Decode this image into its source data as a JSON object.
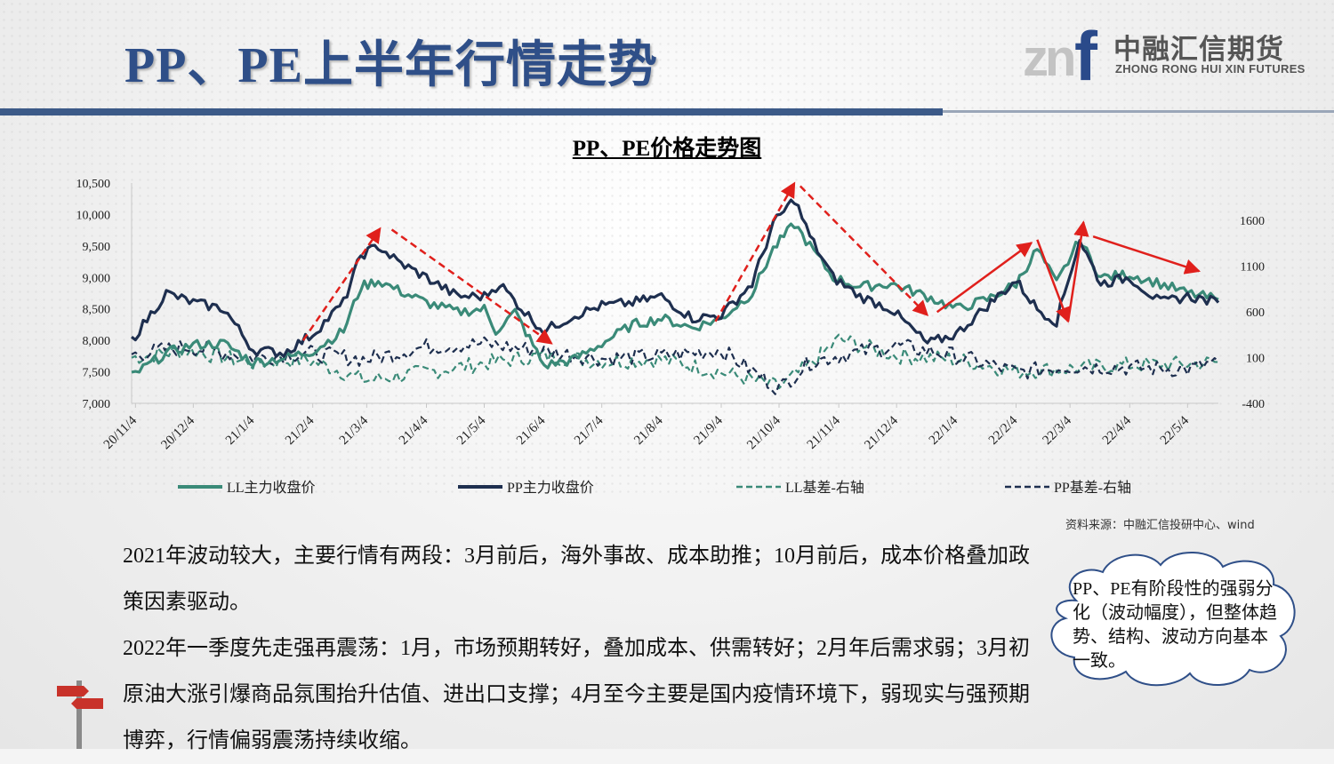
{
  "slide": {
    "title": "PP、PE上半年行情走势",
    "source": "资料来源：中融汇信投研中心、wind",
    "body": [
      "2021年波动较大，主要行情有两段：3月前后，海外事故、成本助推；10月前后，成本价格叠加政策因素驱动。",
      "2022年一季度先走强再震荡：1月，市场预期转好，叠加成本、供需转好；2月年后需求弱；3月初原油大涨引爆商品氛围抬升估值、进出口支撑；4月至今主要是国内疫情环境下，弱现实与强预期博弈，行情偏弱震荡持续收缩。"
    ],
    "callout": "PP、PE有阶段性的强弱分化（波动幅度），但整体趋势、结构、波动方向基本一致。"
  },
  "logo": {
    "mark_gray": "zn",
    "mark_blue": "f",
    "cn": "中融汇信期货",
    "en": "ZHONG RONG HUI XIN FUTURES"
  },
  "colors": {
    "title": "#2f4f88",
    "ll": "#3a8a78",
    "pp": "#1e2f4f",
    "arrow": "#e0201c"
  },
  "chart_data": {
    "type": "line",
    "title": "PP、PE价格走势图",
    "x_ticks": [
      "20/11/4",
      "20/12/4",
      "21/1/4",
      "21/2/4",
      "21/3/4",
      "21/4/4",
      "21/5/4",
      "21/6/4",
      "21/7/4",
      "21/8/4",
      "21/9/4",
      "21/10/4",
      "21/11/4",
      "21/12/4",
      "22/1/4",
      "22/2/4",
      "22/3/4",
      "22/4/4",
      "22/5/4"
    ],
    "x_range": [
      "2020-11-02",
      "2022-05-20"
    ],
    "y_left": {
      "min": 7000,
      "max": 10500,
      "ticks": [
        "7,000",
        "7,500",
        "8,000",
        "8,500",
        "9,000",
        "9,500",
        "10,000",
        "10,500"
      ]
    },
    "y_right": {
      "min": -400,
      "max": 1600,
      "ticks": [
        "-400",
        "100",
        "600",
        "1100",
        "1600"
      ]
    },
    "legend_position": "bottom",
    "series": [
      {
        "name": "LL主力收盘价",
        "axis": "left",
        "style": "solid",
        "color": "#3a8a78",
        "points": [
          [
            "2020-11-02",
            7430
          ],
          [
            "2020-11-20",
            7800
          ],
          [
            "2020-12-04",
            7930
          ],
          [
            "2020-12-20",
            7950
          ],
          [
            "2021-01-04",
            7650
          ],
          [
            "2021-01-20",
            7720
          ],
          [
            "2021-02-04",
            7830
          ],
          [
            "2021-02-20",
            8150
          ],
          [
            "2021-03-01",
            8850
          ],
          [
            "2021-03-10",
            8950
          ],
          [
            "2021-03-20",
            8800
          ],
          [
            "2021-04-04",
            8600
          ],
          [
            "2021-04-20",
            8450
          ],
          [
            "2021-05-04",
            8500
          ],
          [
            "2021-05-10",
            8150
          ],
          [
            "2021-05-20",
            8450
          ],
          [
            "2021-06-04",
            7600
          ],
          [
            "2021-06-20",
            7700
          ],
          [
            "2021-07-04",
            7950
          ],
          [
            "2021-07-20",
            8250
          ],
          [
            "2021-08-04",
            8350
          ],
          [
            "2021-08-20",
            8200
          ],
          [
            "2021-09-04",
            8350
          ],
          [
            "2021-09-20",
            8750
          ],
          [
            "2021-10-01",
            9450
          ],
          [
            "2021-10-12",
            9850
          ],
          [
            "2021-10-20",
            9500
          ],
          [
            "2021-11-01",
            9000
          ],
          [
            "2021-11-15",
            8850
          ],
          [
            "2021-12-01",
            8900
          ],
          [
            "2021-12-20",
            8700
          ],
          [
            "2022-01-04",
            8500
          ],
          [
            "2022-01-20",
            8650
          ],
          [
            "2022-02-04",
            8900
          ],
          [
            "2022-02-15",
            9450
          ],
          [
            "2022-02-25",
            8900
          ],
          [
            "2022-03-09",
            9600
          ],
          [
            "2022-03-20",
            9000
          ],
          [
            "2022-04-04",
            9050
          ],
          [
            "2022-04-20",
            8900
          ],
          [
            "2022-05-04",
            8750
          ],
          [
            "2022-05-20",
            8650
          ]
        ]
      },
      {
        "name": "PP主力收盘价",
        "axis": "left",
        "style": "solid",
        "color": "#1e2f4f",
        "points": [
          [
            "2020-11-02",
            8000
          ],
          [
            "2020-11-20",
            8750
          ],
          [
            "2020-12-04",
            8600
          ],
          [
            "2020-12-20",
            8500
          ],
          [
            "2021-01-04",
            7850
          ],
          [
            "2021-01-20",
            7800
          ],
          [
            "2021-02-04",
            8100
          ],
          [
            "2021-02-20",
            8600
          ],
          [
            "2021-03-01",
            9350
          ],
          [
            "2021-03-10",
            9500
          ],
          [
            "2021-03-20",
            9250
          ],
          [
            "2021-04-04",
            9000
          ],
          [
            "2021-04-20",
            8700
          ],
          [
            "2021-05-04",
            8700
          ],
          [
            "2021-05-12",
            8900
          ],
          [
            "2021-05-25",
            8450
          ],
          [
            "2021-06-04",
            8150
          ],
          [
            "2021-06-20",
            8400
          ],
          [
            "2021-07-04",
            8550
          ],
          [
            "2021-07-20",
            8600
          ],
          [
            "2021-08-04",
            8700
          ],
          [
            "2021-08-20",
            8350
          ],
          [
            "2021-09-04",
            8400
          ],
          [
            "2021-09-20",
            8900
          ],
          [
            "2021-10-01",
            9850
          ],
          [
            "2021-10-12",
            10250
          ],
          [
            "2021-10-20",
            9650
          ],
          [
            "2021-11-01",
            9000
          ],
          [
            "2021-11-15",
            8700
          ],
          [
            "2021-12-01",
            8500
          ],
          [
            "2021-12-20",
            7950
          ],
          [
            "2022-01-04",
            8100
          ],
          [
            "2022-01-20",
            8550
          ],
          [
            "2022-02-04",
            8950
          ],
          [
            "2022-02-15",
            8500
          ],
          [
            "2022-02-25",
            8300
          ],
          [
            "2022-03-09",
            9600
          ],
          [
            "2022-03-20",
            8900
          ],
          [
            "2022-04-04",
            9000
          ],
          [
            "2022-04-20",
            8600
          ],
          [
            "2022-05-04",
            8700
          ],
          [
            "2022-05-20",
            8600
          ]
        ]
      },
      {
        "name": "LL基差-右轴",
        "axis": "right",
        "style": "dashed",
        "color": "#3a8a78",
        "points": [
          [
            "2020-11-02",
            100
          ],
          [
            "2020-12-01",
            180
          ],
          [
            "2021-01-04",
            40
          ],
          [
            "2021-02-01",
            80
          ],
          [
            "2021-03-04",
            -150
          ],
          [
            "2021-04-04",
            -60
          ],
          [
            "2021-05-04",
            40
          ],
          [
            "2021-06-04",
            120
          ],
          [
            "2021-07-04",
            60
          ],
          [
            "2021-08-04",
            80
          ],
          [
            "2021-09-04",
            -60
          ],
          [
            "2021-10-04",
            -220
          ],
          [
            "2021-10-20",
            20
          ],
          [
            "2021-11-04",
            300
          ],
          [
            "2021-12-04",
            120
          ],
          [
            "2022-01-04",
            80
          ],
          [
            "2022-02-04",
            -50
          ],
          [
            "2022-03-04",
            -20
          ],
          [
            "2022-04-04",
            20
          ],
          [
            "2022-05-04",
            30
          ],
          [
            "2022-05-20",
            50
          ]
        ]
      },
      {
        "name": "PP基差-右轴",
        "axis": "right",
        "style": "dashed",
        "color": "#1e2f4f",
        "points": [
          [
            "2020-11-02",
            130
          ],
          [
            "2020-12-01",
            220
          ],
          [
            "2021-01-04",
            100
          ],
          [
            "2021-02-01",
            150
          ],
          [
            "2021-03-04",
            80
          ],
          [
            "2021-04-04",
            220
          ],
          [
            "2021-05-04",
            250
          ],
          [
            "2021-06-04",
            170
          ],
          [
            "2021-07-04",
            90
          ],
          [
            "2021-08-04",
            120
          ],
          [
            "2021-09-04",
            180
          ],
          [
            "2021-10-04",
            -240
          ],
          [
            "2021-10-20",
            50
          ],
          [
            "2021-11-04",
            120
          ],
          [
            "2021-12-04",
            230
          ],
          [
            "2022-01-04",
            120
          ],
          [
            "2022-02-04",
            -60
          ],
          [
            "2022-03-04",
            0
          ],
          [
            "2022-04-04",
            -10
          ],
          [
            "2022-05-04",
            -30
          ],
          [
            "2022-05-20",
            60
          ]
        ]
      }
    ],
    "annotations": [
      {
        "type": "dashed-arrow",
        "from": [
          "2021-01-30",
          8000
        ],
        "to": [
          "2021-03-11",
          9780
        ]
      },
      {
        "type": "dashed-arrow",
        "from": [
          "2021-03-17",
          9760
        ],
        "to": [
          "2021-06-08",
          7950
        ]
      },
      {
        "type": "dashed-arrow",
        "from": [
          "2021-09-01",
          8300
        ],
        "to": [
          "2021-10-12",
          10500
        ]
      },
      {
        "type": "dashed-arrow",
        "from": [
          "2021-10-15",
          10450
        ],
        "to": [
          "2021-12-20",
          8400
        ]
      },
      {
        "type": "arrow",
        "from": [
          "2021-12-25",
          8450
        ],
        "to": [
          "2022-02-12",
          9550
        ]
      },
      {
        "type": "arrow",
        "from": [
          "2022-02-15",
          9600
        ],
        "to": [
          "2022-03-03",
          8300
        ]
      },
      {
        "type": "arrow",
        "from": [
          "2022-03-03",
          8300
        ],
        "to": [
          "2022-03-11",
          9880
        ]
      },
      {
        "type": "arrow",
        "from": [
          "2022-03-16",
          9650
        ],
        "to": [
          "2022-05-10",
          9100
        ]
      }
    ]
  }
}
